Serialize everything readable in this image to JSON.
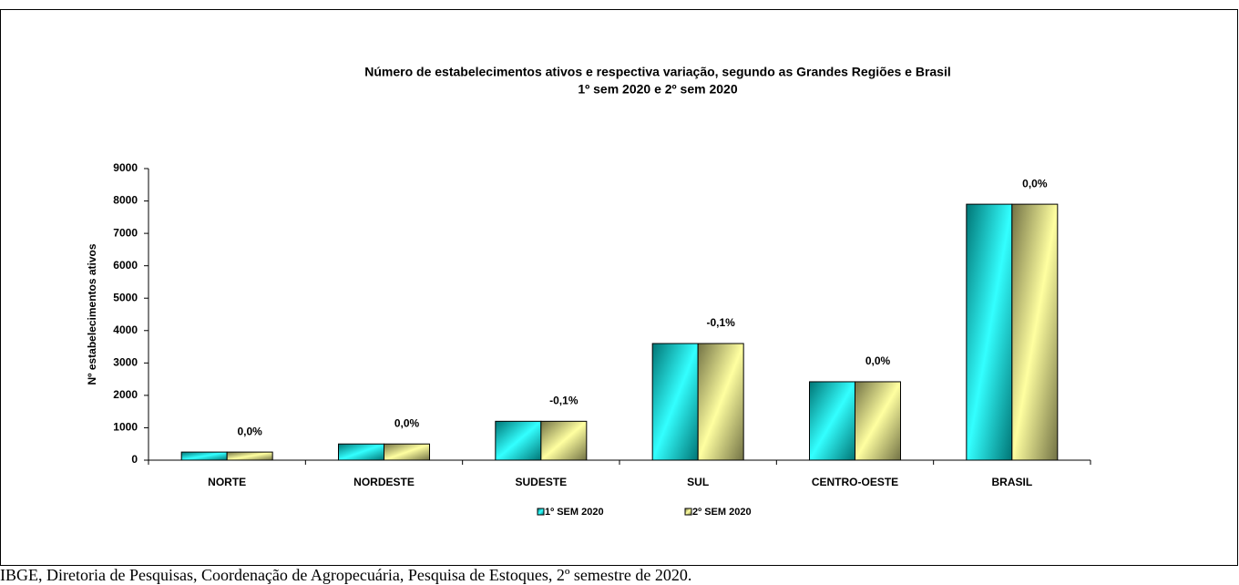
{
  "chart_data": {
    "type": "bar",
    "title": "Número de estabelecimentos ativos e respectiva variação, segundo as Grandes Regiões e Brasil",
    "subtitle": "1º sem 2020 e 2º sem 2020",
    "y_label": "Nº estabelecimentos  ativos",
    "categories": [
      "NORTE",
      "NORDESTE",
      "SUDESTE",
      "SUL",
      "CENTRO-OESTE",
      "BRASIL"
    ],
    "series": [
      {
        "name": "1º SEM 2020",
        "color": "#007575",
        "highlight": "#33ffff",
        "values": [
          250,
          500,
          1200,
          3600,
          2420,
          7900
        ]
      },
      {
        "name": "2º SEM 2020",
        "color": "#727245",
        "highlight": "#ffffa0",
        "values": [
          250,
          500,
          1200,
          3600,
          2420,
          7900
        ]
      }
    ],
    "variation_labels": [
      "0,0%",
      "0,0%",
      "-0,1%",
      "-0,1%",
      "0,0%",
      "0,0%"
    ],
    "ylim": [
      0,
      9000
    ],
    "yticks": [
      0,
      1000,
      2000,
      3000,
      4000,
      5000,
      6000,
      7000,
      8000,
      9000
    ],
    "grid": false
  },
  "caption": "IBGE, Diretoria de Pesquisas, Coordenação de Agropecuária, Pesquisa de Estoques, 2º semestre de 2020."
}
